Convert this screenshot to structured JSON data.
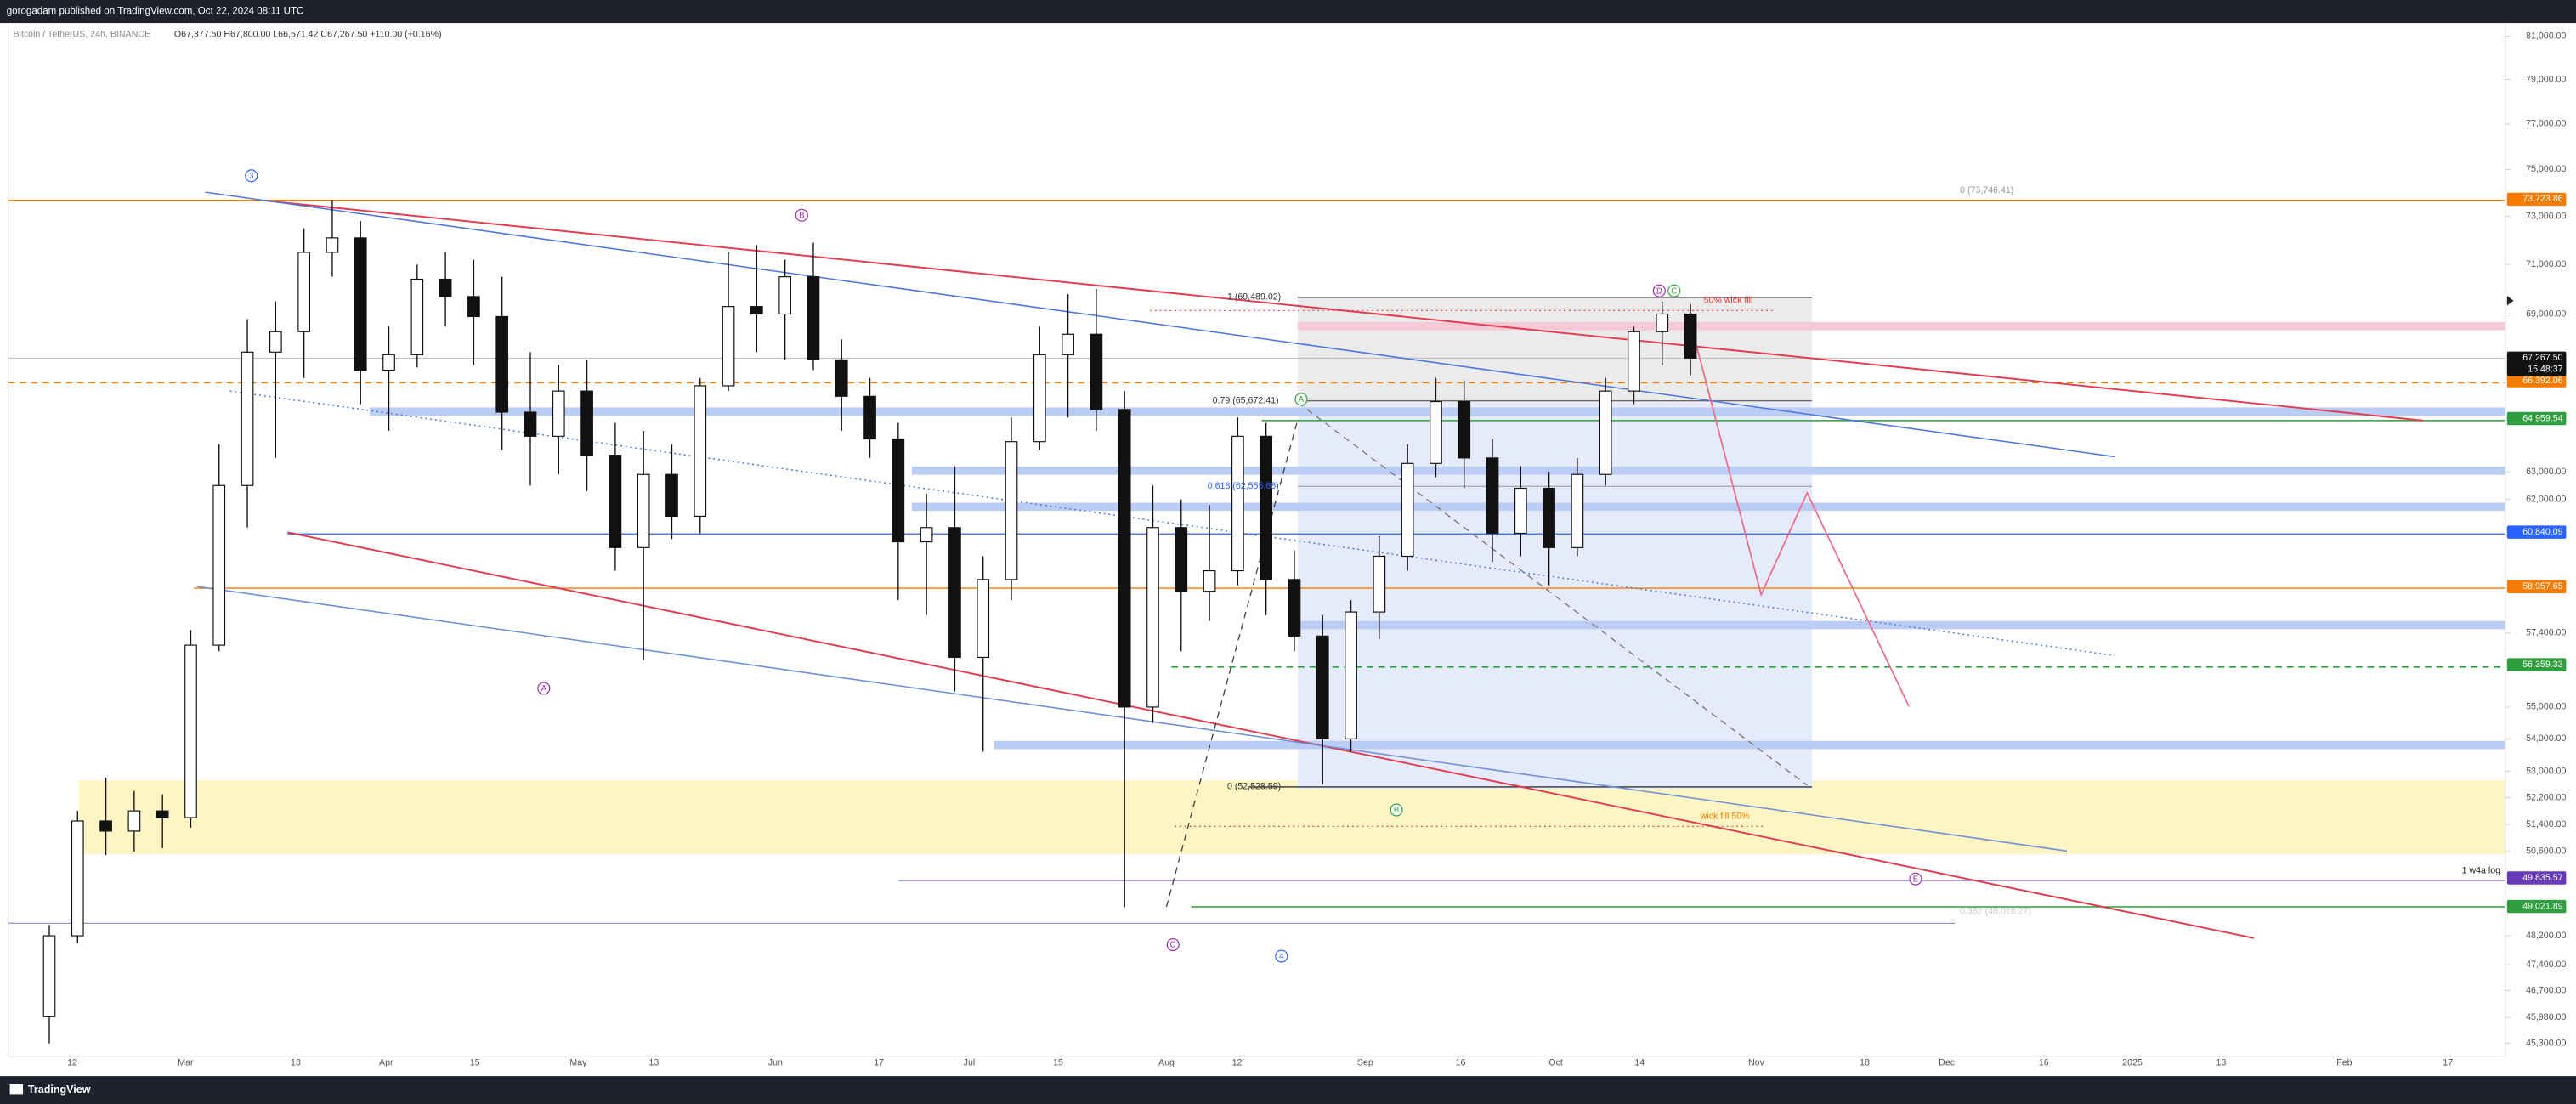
{
  "header": {
    "publisher": "gorogadam published on TradingView.com, Oct 22, 2024 08:11 UTC"
  },
  "symbol": {
    "name": "Bitcoin / TetherUS, 24h, BINANCE",
    "ohlc": "O67,377.50 H67,800.00 L66,571.42 C67,267.50 +110.00 (+0.16%)"
  },
  "price_axis": {
    "log": true,
    "ylim": [
      44960,
      81616
    ],
    "ticks": [
      {
        "value": 81000,
        "label": "81,000.00"
      },
      {
        "value": 79000,
        "label": "79,000.00"
      },
      {
        "value": 77000,
        "label": "77,000.00"
      },
      {
        "value": 75000,
        "label": "75,000.00"
      },
      {
        "value": 73000,
        "label": "73,000.00"
      },
      {
        "value": 71000,
        "label": "71,000.00"
      },
      {
        "value": 69000,
        "label": "69,000.00"
      },
      {
        "value": 63000,
        "label": "63,000.00"
      },
      {
        "value": 62000,
        "label": "62,000.00"
      },
      {
        "value": 57400,
        "label": "57,400.00"
      },
      {
        "value": 55000,
        "label": "55,000.00"
      },
      {
        "value": 54000,
        "label": "54,000.00"
      },
      {
        "value": 53000,
        "label": "53,000.00"
      },
      {
        "value": 52200,
        "label": "52,200.00"
      },
      {
        "value": 51400,
        "label": "51,400.00"
      },
      {
        "value": 50600,
        "label": "50,600.00"
      },
      {
        "value": 48200,
        "label": "48,200.00"
      },
      {
        "value": 47400,
        "label": "47,400.00"
      },
      {
        "value": 46700,
        "label": "46,700.00"
      },
      {
        "value": 45980,
        "label": "45,980.00"
      },
      {
        "value": 45300,
        "label": "45,300.00"
      }
    ],
    "tags": [
      {
        "value": 73723.86,
        "label": "73,723.86",
        "color": "#f57c00"
      },
      {
        "value": 66392.06,
        "label": "66,392.06",
        "color": "#f57c00"
      },
      {
        "value": 64959.54,
        "label": "64,959.54",
        "color": "#2e9e3e"
      },
      {
        "value": 60840.09,
        "label": "60,840.09",
        "color": "#2962ff"
      },
      {
        "value": 58957.65,
        "label": "58,957.65",
        "color": "#f57c00"
      },
      {
        "value": 56359.33,
        "label": "56,359.33",
        "color": "#2e9e3e"
      },
      {
        "value": 49835.57,
        "label": "49,835.57",
        "color": "#673ab7"
      },
      {
        "value": 49021.89,
        "label": "49,021.89",
        "color": "#2e9e3e"
      }
    ],
    "last": {
      "value": 67267.5,
      "label": "67,267.50",
      "countdown": "15:48:37"
    }
  },
  "time_axis": {
    "labels": [
      "12",
      "Mar",
      "18",
      "Apr",
      "15",
      "May",
      "13",
      "Jun",
      "17",
      "Jul",
      "15",
      "Aug",
      "12",
      "Sep",
      "16",
      "Oct",
      "14",
      "Nov",
      "18",
      "Dec",
      "16",
      "2025",
      "13",
      "Feb",
      "17"
    ]
  },
  "candles": [
    [
      46000,
      48500,
      45300,
      48200
    ],
    [
      48200,
      51800,
      48000,
      51500
    ],
    [
      51500,
      52800,
      50500,
      51200
    ],
    [
      51200,
      52400,
      50600,
      51800
    ],
    [
      51800,
      52300,
      50700,
      51600
    ],
    [
      51600,
      57500,
      51300,
      57000
    ],
    [
      57000,
      64000,
      56800,
      62500
    ],
    [
      62500,
      68800,
      61000,
      67500
    ],
    [
      67500,
      69500,
      63500,
      68300
    ],
    [
      68300,
      72500,
      66500,
      71500
    ],
    [
      71500,
      73700,
      70500,
      72100
    ],
    [
      72100,
      72800,
      65500,
      66800
    ],
    [
      66800,
      68500,
      64500,
      67400
    ],
    [
      67400,
      71000,
      66900,
      70400
    ],
    [
      70400,
      71500,
      68500,
      69700
    ],
    [
      69700,
      71200,
      67000,
      68900
    ],
    [
      68900,
      70500,
      63800,
      65200
    ],
    [
      65200,
      67500,
      62500,
      64300
    ],
    [
      64300,
      67000,
      62900,
      66000
    ],
    [
      66000,
      67200,
      62300,
      63600
    ],
    [
      63600,
      64800,
      59500,
      60300
    ],
    [
      60300,
      64500,
      56500,
      62900
    ],
    [
      62900,
      64000,
      60600,
      61400
    ],
    [
      61400,
      66500,
      60800,
      66200
    ],
    [
      66200,
      71500,
      66000,
      69300
    ],
    [
      69300,
      71800,
      67500,
      69000
    ],
    [
      69000,
      71200,
      67200,
      70500
    ],
    [
      70500,
      71900,
      66800,
      67200
    ],
    [
      67200,
      68000,
      64500,
      65800
    ],
    [
      65800,
      66500,
      63500,
      64200
    ],
    [
      64200,
      64800,
      58500,
      60500
    ],
    [
      60500,
      62200,
      58000,
      61000
    ],
    [
      61000,
      63200,
      55500,
      56600
    ],
    [
      56600,
      60000,
      53600,
      59200
    ],
    [
      59200,
      65000,
      58500,
      64100
    ],
    [
      64100,
      68500,
      63800,
      67400
    ],
    [
      67400,
      69800,
      65000,
      68200
    ],
    [
      68200,
      70000,
      64500,
      65300
    ],
    [
      65300,
      66000,
      49000,
      55000
    ],
    [
      55000,
      62500,
      54500,
      61000
    ],
    [
      61000,
      62000,
      56800,
      58800
    ],
    [
      58800,
      61800,
      57800,
      59500
    ],
    [
      59500,
      65000,
      59000,
      64300
    ],
    [
      64300,
      64800,
      58000,
      59200
    ],
    [
      59200,
      60200,
      56800,
      57300
    ],
    [
      57300,
      58000,
      52600,
      54000
    ],
    [
      54000,
      58500,
      53600,
      58100
    ],
    [
      58100,
      60700,
      57200,
      60000
    ],
    [
      60000,
      64000,
      59500,
      63300
    ],
    [
      63300,
      66500,
      62800,
      65600
    ],
    [
      65600,
      66400,
      62400,
      63500
    ],
    [
      63500,
      64200,
      59800,
      60800
    ],
    [
      60800,
      63200,
      60000,
      62400
    ],
    [
      62400,
      63000,
      59000,
      60300
    ],
    [
      60300,
      63500,
      60000,
      62900
    ],
    [
      62900,
      66500,
      62500,
      66000
    ],
    [
      66000,
      68500,
      65500,
      68300
    ],
    [
      68300,
      69500,
      67000,
      69000
    ],
    [
      69000,
      69400,
      66600,
      67267.5
    ]
  ],
  "annotations": {
    "fib_1": "1 (69,489.02)",
    "fib_079": "0.79 (65,672.41)",
    "fib_0618": "0.618 (62,555.68)",
    "fib_0": "0 (52,528.59)",
    "fib_top": "0 (73,746.41)",
    "fib_0382": "0.382 (48,018.27)",
    "wick_top": "50% wick fill",
    "wick_bottom": "wick fill 50%",
    "w4a": "1 w4a log",
    "waves": [
      "3",
      "B",
      "A",
      "C",
      "4",
      "A",
      "B",
      "D",
      "C",
      "E"
    ]
  },
  "footer": {
    "brand": "TradingView"
  }
}
